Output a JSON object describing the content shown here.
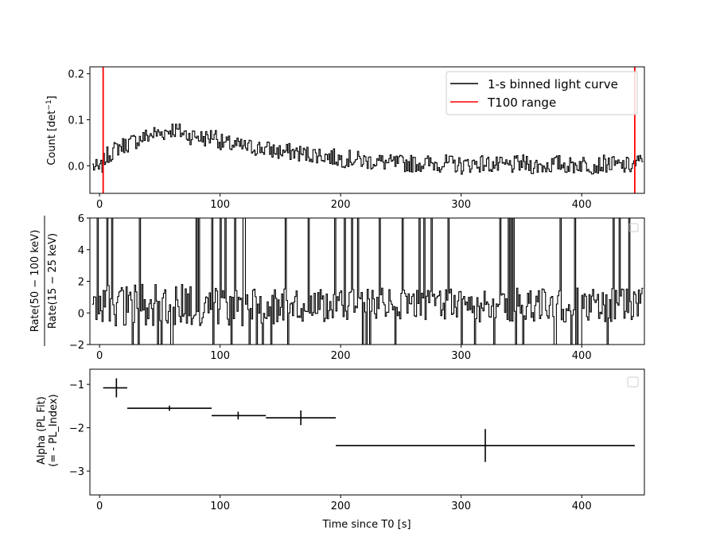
{
  "chart_data": [
    {
      "type": "line",
      "panel": "top",
      "title": "",
      "xlabel": "",
      "ylabel": "Count [det$^{-1}$]",
      "xlim": [
        -8,
        452
      ],
      "ylim": [
        -0.06,
        0.215
      ],
      "xticks": [
        0,
        100,
        200,
        300,
        400
      ],
      "yticks": [
        0.0,
        0.1,
        0.2
      ],
      "ytick_labels": [
        "0.0",
        "0.1",
        "0.2"
      ],
      "legend_position": "top-right",
      "series": [
        {
          "name": "1-s binned light curve",
          "color": "#000000",
          "style": "step",
          "x": [
            -6,
            0,
            5,
            10,
            15,
            20,
            25,
            30,
            35,
            40,
            45,
            50,
            55,
            60,
            65,
            70,
            75,
            80,
            85,
            90,
            95,
            100,
            110,
            120,
            130,
            140,
            150,
            160,
            170,
            180,
            190,
            200,
            210,
            220,
            230,
            240,
            250,
            260,
            270,
            280,
            290,
            300,
            310,
            320,
            330,
            340,
            350,
            360,
            370,
            380,
            390,
            400,
            410,
            420,
            430,
            440,
            450
          ],
          "y": [
            0.0,
            -0.01,
            0.02,
            0.03,
            0.04,
            0.045,
            0.05,
            0.055,
            0.06,
            0.065,
            0.07,
            0.07,
            0.075,
            0.08,
            0.075,
            0.07,
            0.065,
            0.065,
            0.06,
            0.06,
            0.07,
            0.05,
            0.045,
            0.04,
            0.04,
            0.035,
            0.03,
            0.03,
            0.025,
            0.025,
            0.02,
            0.015,
            0.015,
            0.01,
            0.01,
            0.005,
            0.005,
            0.005,
            0.005,
            0.005,
            0.005,
            0.0,
            0.005,
            0.005,
            0.0,
            0.0,
            0.005,
            0.0,
            0.0,
            0.005,
            0.0,
            0.005,
            0.0,
            0.005,
            0.0,
            0.0,
            0.01
          ],
          "noise": 0.012
        },
        {
          "name": "T100 range",
          "color": "#ff0000",
          "style": "vline",
          "x": [
            3,
            444
          ]
        }
      ]
    },
    {
      "type": "line",
      "panel": "middle",
      "title": "",
      "xlabel": "",
      "ylabel_numerator": "Rate(50 − 100 keV)",
      "ylabel_denominator": "Rate(15 − 25 keV)",
      "xlim": [
        -8,
        452
      ],
      "ylim": [
        -2,
        6
      ],
      "xticks": [
        0,
        100,
        200,
        300,
        400
      ],
      "yticks": [
        -2,
        0,
        2,
        4,
        6
      ],
      "legend_position": "top-right",
      "series": [
        {
          "name": "",
          "color": "#000000",
          "style": "step",
          "x": [
            -6,
            450
          ],
          "y_center": 0.5,
          "spread": 1.2,
          "spike_fraction": 0.12
        }
      ]
    },
    {
      "type": "scatter",
      "panel": "bottom",
      "title": "",
      "xlabel": "Time since T0 [s]",
      "ylabel_line1": "Alpha (PL Fit)",
      "ylabel_line2": "(= - PL_Index)",
      "xlim": [
        -8,
        452
      ],
      "ylim": [
        -3.55,
        -0.65
      ],
      "xticks": [
        0,
        100,
        200,
        300,
        400
      ],
      "yticks": [
        -3,
        -2,
        -1
      ],
      "legend_position": "top-right",
      "series": [
        {
          "name": "",
          "color": "#000000",
          "style": "errorbar",
          "points": [
            {
              "x": 14,
              "x_lo": 3,
              "x_hi": 23,
              "y": -1.08,
              "y_err": 0.22
            },
            {
              "x": 58,
              "x_lo": 23,
              "x_hi": 93,
              "y": -1.55,
              "y_err": 0.06
            },
            {
              "x": 115,
              "x_lo": 93,
              "x_hi": 138,
              "y": -1.72,
              "y_err": 0.09
            },
            {
              "x": 167,
              "x_lo": 138,
              "x_hi": 196,
              "y": -1.77,
              "y_err": 0.17
            },
            {
              "x": 320,
              "x_lo": 196,
              "x_hi": 444,
              "y": -2.41,
              "y_err": 0.38
            }
          ]
        }
      ]
    }
  ]
}
